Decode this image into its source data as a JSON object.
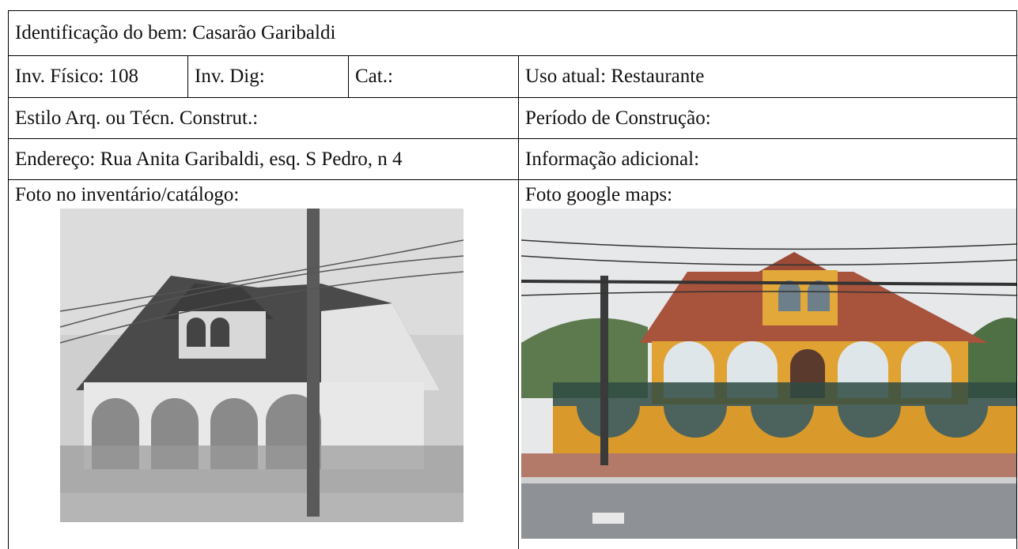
{
  "table": {
    "rows": [
      [
        "Identificação do bem: Casarão Garibaldi"
      ],
      [
        "Inv. Físico: 108",
        "Inv. Dig:",
        "Cat.:",
        "Uso atual: Restaurante"
      ],
      [
        "Estilo Arq. ou Técn. Construt.:",
        "Período de Construção:"
      ],
      [
        "Endereço: Rua Anita Garibaldi, esq. S Pedro, n 4",
        "Informação adicional:"
      ],
      [
        "Foto no inventário/catálogo:",
        "Foto google maps:"
      ]
    ]
  }
}
